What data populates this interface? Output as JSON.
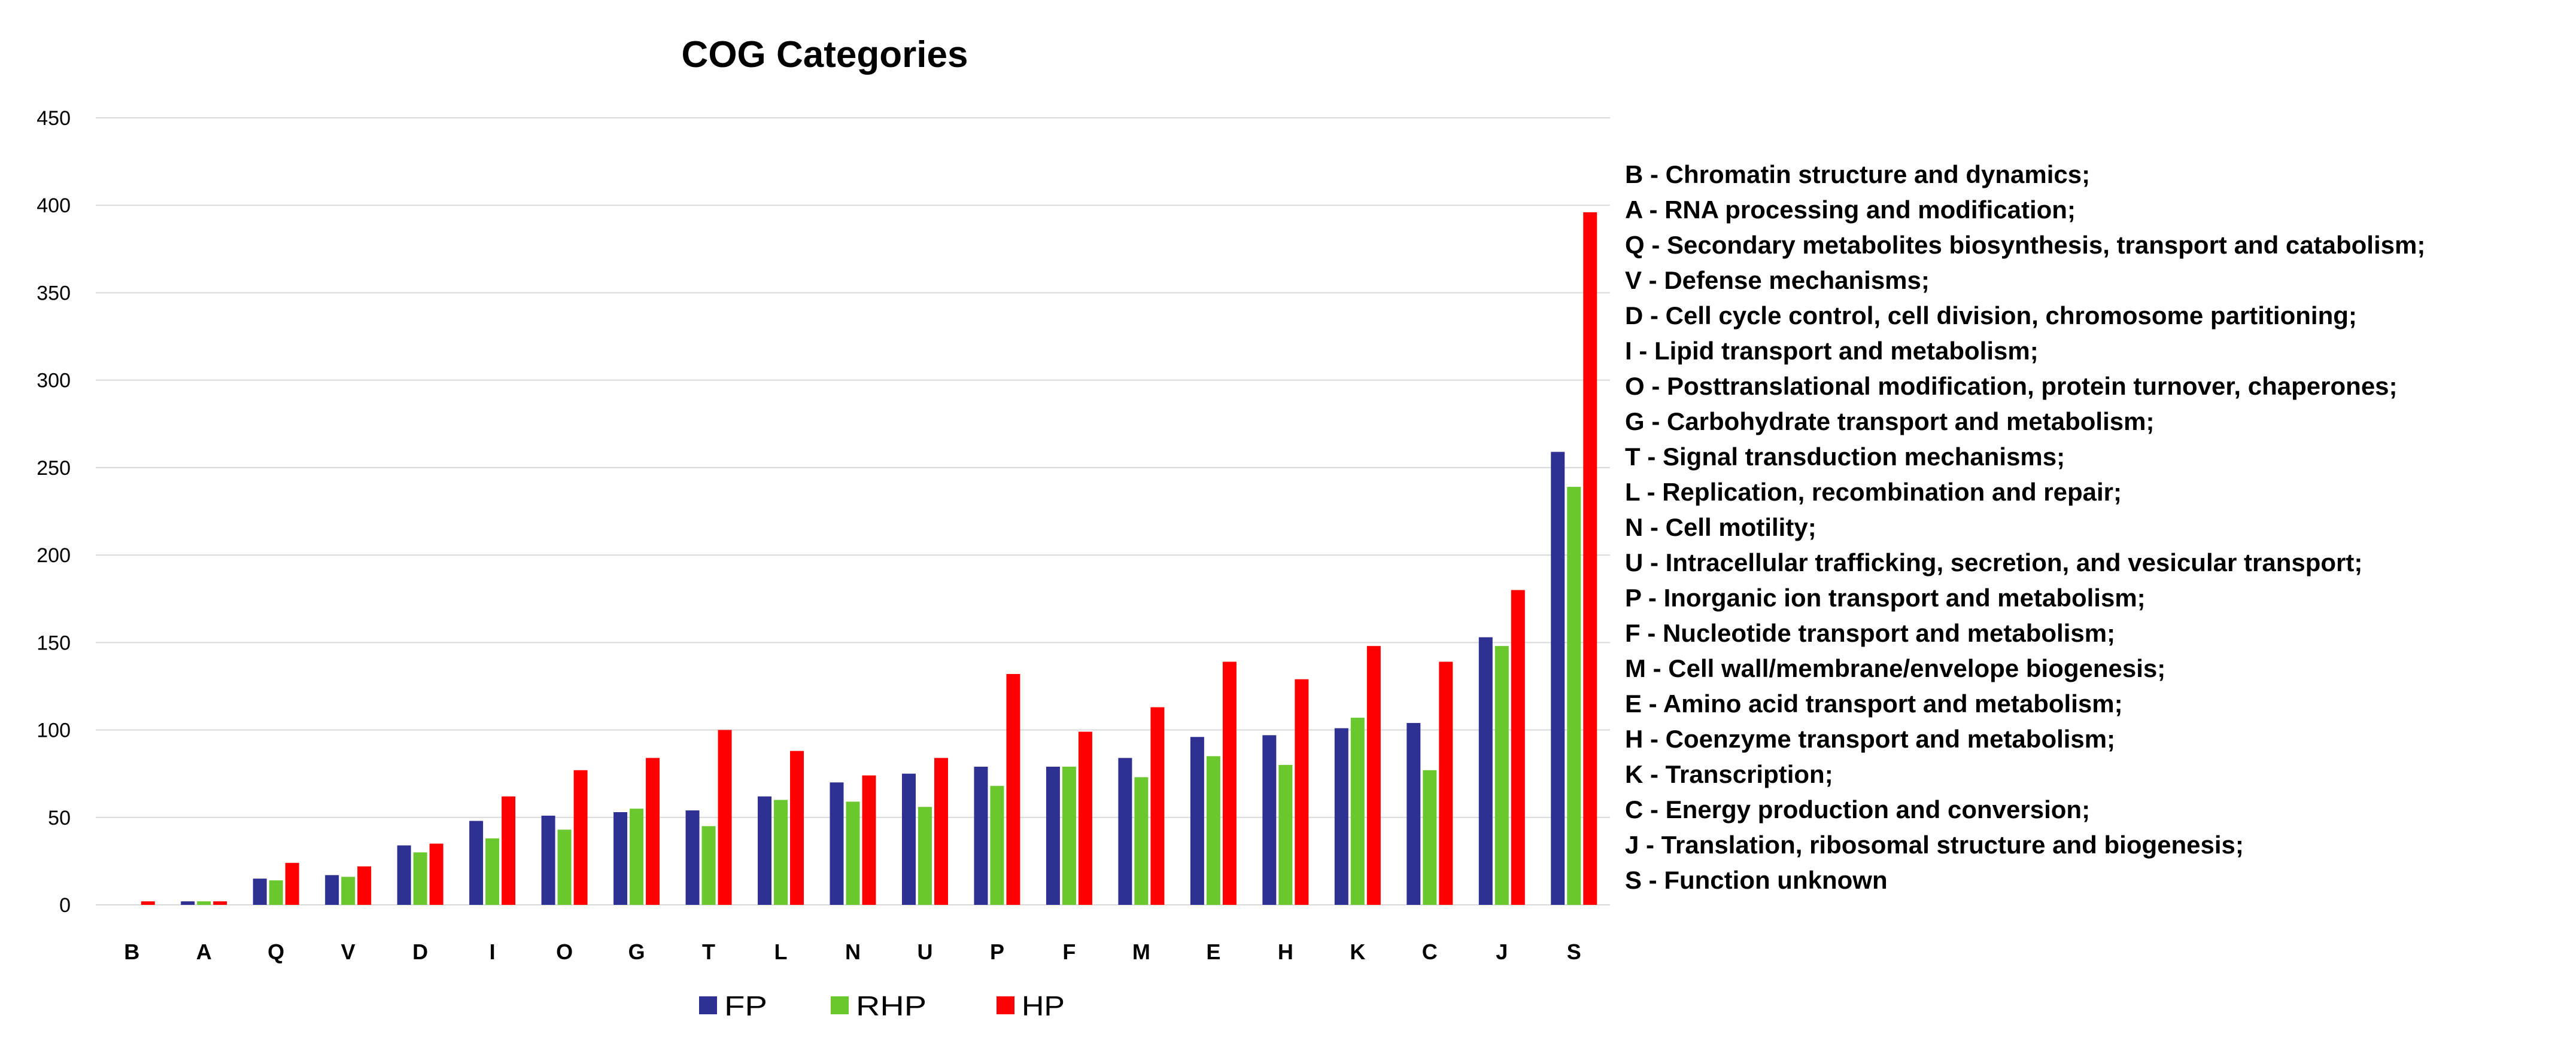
{
  "chart_data": {
    "type": "bar",
    "title": "COG Categories",
    "xlabel": "",
    "ylabel": "",
    "ylim": [
      0,
      450
    ],
    "yticks": [
      0,
      50,
      100,
      150,
      200,
      250,
      300,
      350,
      400,
      450
    ],
    "grid": true,
    "legend_position": "bottom",
    "categories": [
      "B",
      "A",
      "Q",
      "V",
      "D",
      "I",
      "O",
      "G",
      "T",
      "L",
      "N",
      "U",
      "P",
      "F",
      "M",
      "E",
      "H",
      "K",
      "C",
      "J",
      "S"
    ],
    "series": [
      {
        "name": "FP",
        "color": "#2e3192",
        "values": [
          0,
          2,
          15,
          17,
          34,
          48,
          51,
          53,
          54,
          62,
          70,
          75,
          79,
          79,
          84,
          96,
          97,
          101,
          104,
          153,
          259
        ]
      },
      {
        "name": "RHP",
        "color": "#6ac72e",
        "values": [
          0,
          2,
          14,
          16,
          30,
          38,
          43,
          55,
          45,
          60,
          59,
          56,
          68,
          79,
          73,
          85,
          80,
          107,
          77,
          148,
          239
        ]
      },
      {
        "name": "HP",
        "color": "#ff0000",
        "values": [
          2,
          2,
          24,
          22,
          35,
          62,
          77,
          84,
          100,
          88,
          74,
          84,
          132,
          99,
          113,
          139,
          129,
          148,
          139,
          180,
          396
        ]
      }
    ],
    "category_descriptions": [
      "B - Chromatin structure and dynamics;",
      "A - RNA processing and modification;",
      "Q - Secondary metabolites biosynthesis, transport and catabolism;",
      "V - Defense mechanisms;",
      "D - Cell cycle control, cell division, chromosome partitioning;",
      "I - Lipid transport and metabolism;",
      "O - Posttranslational modification, protein turnover, chaperones;",
      "G - Carbohydrate transport and metabolism;",
      "T - Signal transduction mechanisms;",
      "L - Replication, recombination and repair;",
      "N - Cell motility;",
      "U - Intracellular trafficking, secretion, and vesicular transport;",
      "P - Inorganic ion transport and metabolism;",
      "F - Nucleotide transport and metabolism;",
      "M - Cell wall/membrane/envelope biogenesis;",
      "E - Amino acid transport and metabolism;",
      "H - Coenzyme transport and metabolism;",
      "K - Transcription;",
      "C - Energy production and conversion;",
      "J - Translation, ribosomal structure and biogenesis;",
      "S - Function unknown"
    ]
  }
}
